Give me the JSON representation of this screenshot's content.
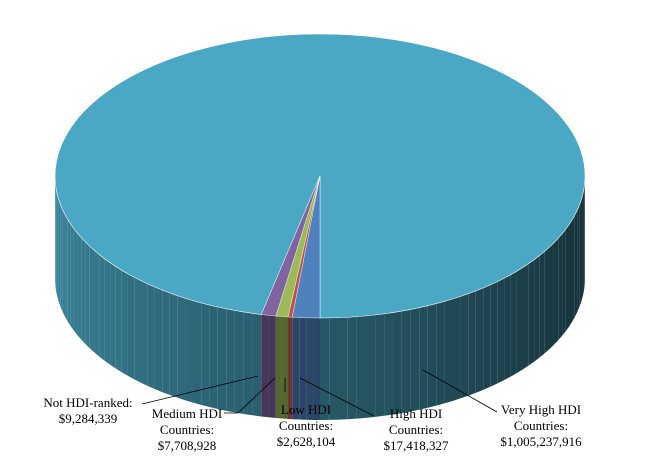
{
  "chart_data": {
    "type": "pie",
    "title": "",
    "style": "3d",
    "slices": [
      {
        "name": "Very High HDI Countries",
        "value": 1005237916,
        "value_label": "$1,005,237,916",
        "color": "#4aa8c5"
      },
      {
        "name": "High HDI Countries",
        "value": 17418327,
        "value_label": "$17,418,327",
        "color": "#4f81bd"
      },
      {
        "name": "Low HDI Countries",
        "value": 2628104,
        "value_label": "$2,628,104",
        "color": "#c0504d"
      },
      {
        "name": "Medium HDI Countries",
        "value": 7708928,
        "value_label": "$7,708,928",
        "color": "#9bbb59"
      },
      {
        "name": "Not HDI-ranked",
        "value": 9284339,
        "value_label": "$9,284,339",
        "color": "#8064a2"
      }
    ],
    "labels": [
      {
        "slice": 4,
        "lines": [
          "Not HDI-ranked:",
          "$9,284,339"
        ]
      },
      {
        "slice": 3,
        "lines": [
          "Medium HDI",
          "Countries:",
          "$7,708,928"
        ]
      },
      {
        "slice": 2,
        "lines": [
          "Low HDI",
          "Countries:",
          "$2,628,104"
        ]
      },
      {
        "slice": 1,
        "lines": [
          "High HDI",
          "Countries:",
          "$17,418,327"
        ]
      },
      {
        "slice": 0,
        "lines": [
          "Very High HDI",
          "Countries:",
          "$1,005,237,916"
        ]
      }
    ]
  }
}
